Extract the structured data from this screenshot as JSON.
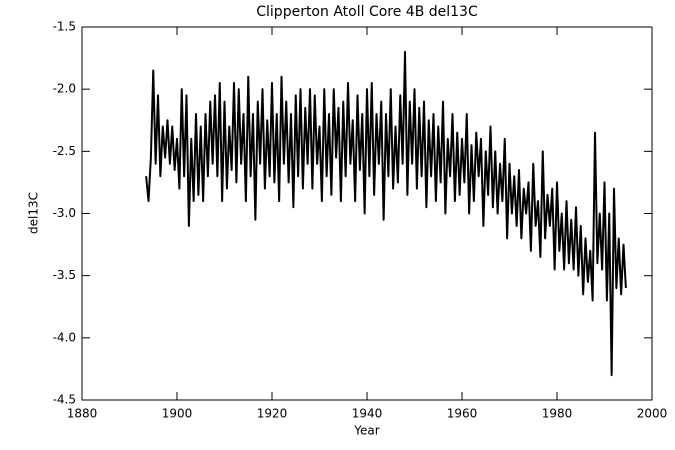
{
  "chart_data": {
    "type": "line",
    "title": "Clipperton Atoll Core 4B del13C",
    "xlabel": "Year",
    "ylabel": "del13C",
    "color": "#000000",
    "x": [
      1893.5,
      1894,
      1894.5,
      1895,
      1895.5,
      1896,
      1896.5,
      1897,
      1897.5,
      1898,
      1898.5,
      1899,
      1899.5,
      1900,
      1900.5,
      1901,
      1901.5,
      1902,
      1902.5,
      1903,
      1903.5,
      1904,
      1904.5,
      1905,
      1905.5,
      1906,
      1906.5,
      1907,
      1907.5,
      1908,
      1908.5,
      1909,
      1909.5,
      1910,
      1910.5,
      1911,
      1911.5,
      1912,
      1912.5,
      1913,
      1913.5,
      1914,
      1914.5,
      1915,
      1915.5,
      1916,
      1916.5,
      1917,
      1917.5,
      1918,
      1918.5,
      1919,
      1919.5,
      1920,
      1920.5,
      1921,
      1921.5,
      1922,
      1922.5,
      1923,
      1923.5,
      1924,
      1924.5,
      1925,
      1925.5,
      1926,
      1926.5,
      1927,
      1927.5,
      1928,
      1928.5,
      1929,
      1929.5,
      1930,
      1930.5,
      1931,
      1931.5,
      1932,
      1932.5,
      1933,
      1933.5,
      1934,
      1934.5,
      1935,
      1935.5,
      1936,
      1936.5,
      1937,
      1937.5,
      1938,
      1938.5,
      1939,
      1939.5,
      1940,
      1940.5,
      1941,
      1941.5,
      1942,
      1942.5,
      1943,
      1943.5,
      1944,
      1944.5,
      1945,
      1945.5,
      1946,
      1946.5,
      1947,
      1947.5,
      1948,
      1948.5,
      1949,
      1949.5,
      1950,
      1950.5,
      1951,
      1951.5,
      1952,
      1952.5,
      1953,
      1953.5,
      1954,
      1954.5,
      1955,
      1955.5,
      1956,
      1956.5,
      1957,
      1957.5,
      1958,
      1958.5,
      1959,
      1959.5,
      1960,
      1960.5,
      1961,
      1961.5,
      1962,
      1962.5,
      1963,
      1963.5,
      1964,
      1964.5,
      1965,
      1965.5,
      1966,
      1966.5,
      1967,
      1967.5,
      1968,
      1968.5,
      1969,
      1969.5,
      1970,
      1970.5,
      1971,
      1971.5,
      1972,
      1972.5,
      1973,
      1973.5,
      1974,
      1974.5,
      1975,
      1975.5,
      1976,
      1976.5,
      1977,
      1977.5,
      1978,
      1978.5,
      1979,
      1979.5,
      1980,
      1980.5,
      1981,
      1981.5,
      1982,
      1982.5,
      1983,
      1983.5,
      1984,
      1984.5,
      1985,
      1985.5,
      1986,
      1986.5,
      1987,
      1987.5,
      1988,
      1988.5,
      1989,
      1989.5,
      1990,
      1990.5,
      1991,
      1991.5,
      1992,
      1992.5,
      1993,
      1993.5,
      1994,
      1994.5
    ],
    "values": [
      -2.7,
      -2.9,
      -2.55,
      -1.85,
      -2.6,
      -2.05,
      -2.7,
      -2.3,
      -2.55,
      -2.25,
      -2.6,
      -2.3,
      -2.65,
      -2.4,
      -2.8,
      -2.0,
      -2.7,
      -2.05,
      -3.1,
      -2.4,
      -2.9,
      -2.2,
      -2.85,
      -2.3,
      -2.9,
      -2.2,
      -2.7,
      -2.1,
      -2.6,
      -2.05,
      -2.7,
      -1.95,
      -2.9,
      -2.1,
      -2.8,
      -2.3,
      -2.65,
      -1.95,
      -2.75,
      -2.0,
      -2.6,
      -2.2,
      -2.9,
      -1.9,
      -2.7,
      -2.2,
      -3.05,
      -2.1,
      -2.6,
      -2.0,
      -2.8,
      -2.25,
      -2.7,
      -1.95,
      -2.75,
      -2.2,
      -2.9,
      -1.9,
      -2.6,
      -2.1,
      -2.75,
      -2.2,
      -2.95,
      -2.05,
      -2.7,
      -2.0,
      -2.8,
      -2.15,
      -2.6,
      -2.0,
      -2.8,
      -2.05,
      -2.6,
      -2.3,
      -2.9,
      -2.0,
      -2.7,
      -2.2,
      -2.85,
      -2.0,
      -2.55,
      -2.15,
      -2.9,
      -2.1,
      -2.7,
      -1.95,
      -2.6,
      -2.25,
      -2.9,
      -2.05,
      -2.65,
      -2.2,
      -3.0,
      -2.0,
      -2.7,
      -1.95,
      -2.85,
      -2.2,
      -2.6,
      -2.1,
      -3.05,
      -2.2,
      -2.7,
      -2.0,
      -2.8,
      -2.3,
      -2.75,
      -2.05,
      -2.6,
      -1.7,
      -2.85,
      -2.1,
      -2.6,
      -2.0,
      -2.8,
      -2.15,
      -2.7,
      -2.1,
      -2.95,
      -2.25,
      -2.7,
      -2.2,
      -2.9,
      -2.3,
      -2.75,
      -2.1,
      -3.0,
      -2.4,
      -2.7,
      -2.2,
      -2.9,
      -2.35,
      -2.85,
      -2.4,
      -2.75,
      -2.2,
      -3.0,
      -2.45,
      -2.9,
      -2.35,
      -2.7,
      -2.4,
      -3.1,
      -2.5,
      -2.85,
      -2.3,
      -2.95,
      -2.5,
      -3.0,
      -2.6,
      -2.9,
      -2.4,
      -3.2,
      -2.6,
      -3.0,
      -2.7,
      -3.1,
      -2.65,
      -3.2,
      -2.8,
      -3.0,
      -2.75,
      -3.3,
      -2.6,
      -3.1,
      -2.9,
      -3.35,
      -2.5,
      -3.2,
      -2.85,
      -3.1,
      -2.8,
      -3.45,
      -2.75,
      -3.3,
      -3.0,
      -3.45,
      -2.9,
      -3.4,
      -3.05,
      -3.45,
      -2.95,
      -3.5,
      -3.1,
      -3.65,
      -3.2,
      -3.55,
      -3.3,
      -3.7,
      -2.35,
      -3.4,
      -3.0,
      -3.45,
      -2.75,
      -3.7,
      -3.0,
      -4.3,
      -2.8,
      -3.6,
      -3.2,
      -3.65,
      -3.25,
      -3.6
    ],
    "xlim": [
      1880,
      2000
    ],
    "xticks": [
      1880,
      1900,
      1920,
      1940,
      1960,
      1980,
      2000
    ],
    "ylim": [
      -4.5,
      -1.5
    ],
    "yticks": [
      -4.5,
      {
        "value": -4,
        "label": "-4.0"
      },
      -3.5,
      {
        "value": -3,
        "label": "-3.0"
      },
      -2.5,
      {
        "value": -2,
        "label": "-2.0"
      },
      -1.5
    ]
  }
}
